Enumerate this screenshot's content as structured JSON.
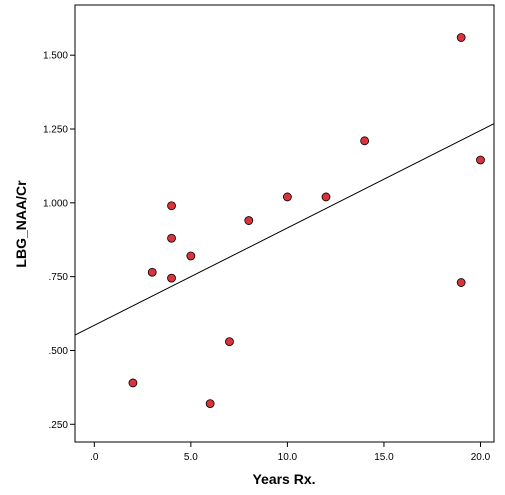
{
  "chart_data": {
    "type": "scatter",
    "title": "",
    "xlabel": "Years Rx.",
    "ylabel": "LBG_NAA/Cr",
    "xlim": [
      -1.0,
      20.7
    ],
    "ylim": [
      0.19,
      1.67
    ],
    "x_ticks": [
      0.0,
      5.0,
      10.0,
      15.0,
      20.0
    ],
    "x_tick_labels": [
      ".0",
      "5.0",
      "10.0",
      "15.0",
      "20.0"
    ],
    "y_ticks": [
      0.25,
      0.5,
      0.75,
      1.0,
      1.25,
      1.5
    ],
    "y_tick_labels": [
      ".250",
      ".500",
      ".750",
      "1.000",
      "1.250",
      "1.500"
    ],
    "grid": false,
    "legend": "none",
    "marker_color": "#d9333b",
    "marker_edge_color": "#000000",
    "points": [
      {
        "x": 2,
        "y": 0.39
      },
      {
        "x": 3,
        "y": 0.765
      },
      {
        "x": 4,
        "y": 0.99
      },
      {
        "x": 4,
        "y": 0.88
      },
      {
        "x": 4,
        "y": 0.745
      },
      {
        "x": 5,
        "y": 0.82
      },
      {
        "x": 6,
        "y": 0.32
      },
      {
        "x": 7,
        "y": 0.53
      },
      {
        "x": 8,
        "y": 0.94
      },
      {
        "x": 10,
        "y": 1.02
      },
      {
        "x": 12,
        "y": 1.02
      },
      {
        "x": 14,
        "y": 1.21
      },
      {
        "x": 19,
        "y": 1.56
      },
      {
        "x": 19,
        "y": 0.73
      },
      {
        "x": 20,
        "y": 1.145
      }
    ],
    "fit_line": {
      "type": "linear",
      "intercept": 0.585,
      "slope": 0.033
    }
  }
}
